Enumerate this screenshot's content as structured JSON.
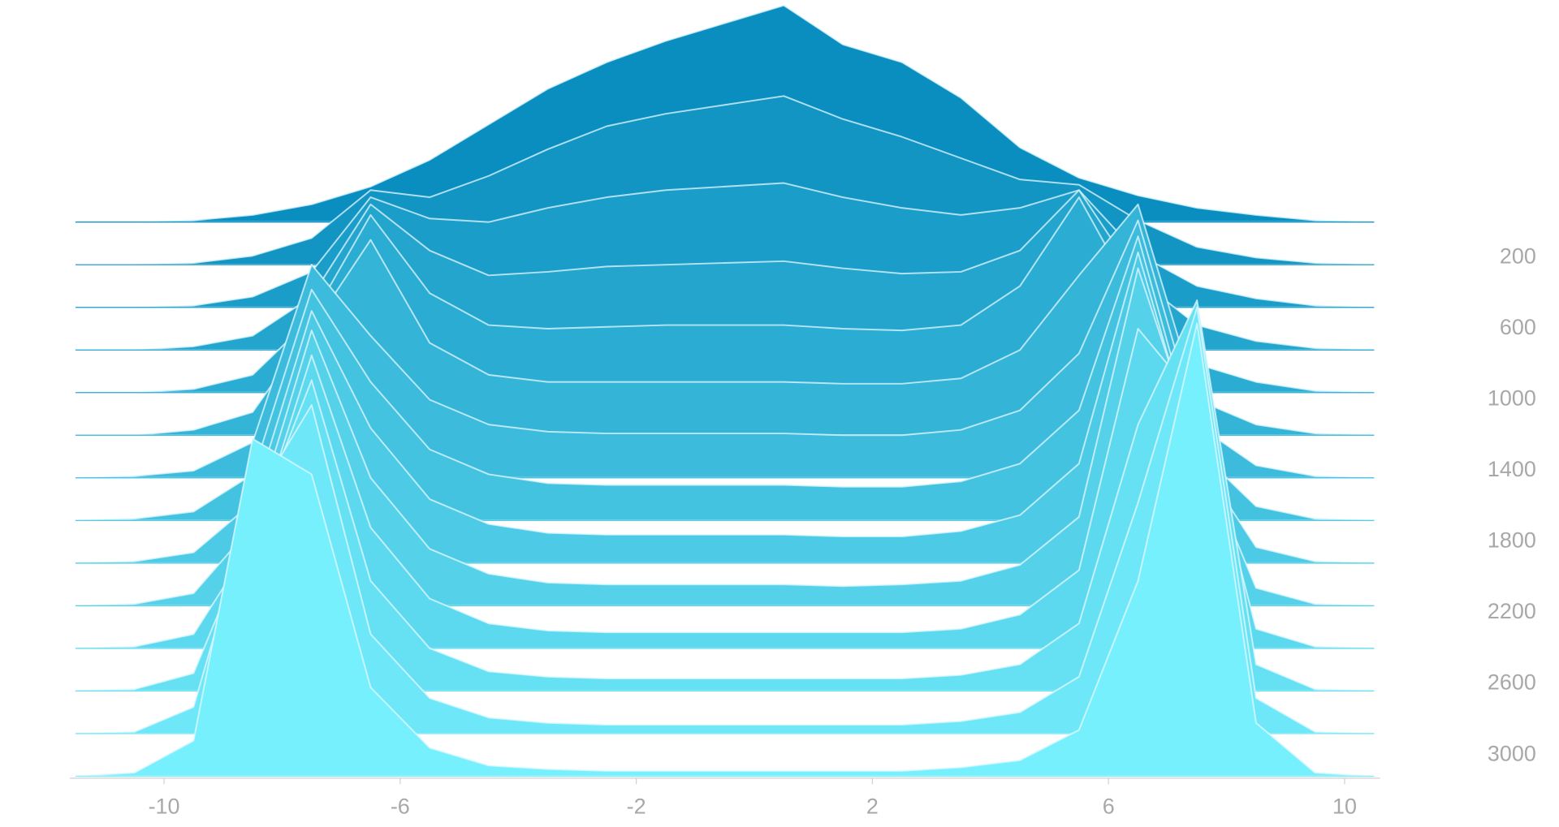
{
  "chart_data": {
    "type": "ridgeline",
    "x": [
      -11.5,
      -10.5,
      -9.5,
      -8.5,
      -7.5,
      -6.5,
      -5.5,
      -4.5,
      -3.5,
      -2.5,
      -1.5,
      -0.5,
      0.5,
      1.5,
      2.5,
      3.5,
      4.5,
      5.5,
      6.5,
      7.5,
      8.5,
      9.5,
      10.5
    ],
    "xlim": [
      -11.6,
      10.6
    ],
    "xticks": [
      -10,
      -6,
      -2,
      2,
      6,
      10
    ],
    "ylim": [
      3120,
      -1250
    ],
    "yticks": [
      200,
      600,
      1000,
      1400,
      1800,
      2200,
      2600,
      3000
    ],
    "line_color": "#e4f8ff",
    "axis_color": "#d0d0d0",
    "series": [
      {
        "row": 0,
        "color": "#0a8ebf",
        "values": [
          0,
          0,
          10,
          40,
          100,
          200,
          350,
          550,
          750,
          900,
          1020,
          1120,
          1220,
          1000,
          900,
          700,
          420,
          250,
          150,
          80,
          40,
          10,
          0
        ]
      },
      {
        "row": 240,
        "color": "#1295c3",
        "values": [
          0,
          0,
          10,
          50,
          150,
          420,
          380,
          500,
          650,
          780,
          850,
          900,
          950,
          820,
          720,
          600,
          480,
          450,
          250,
          100,
          40,
          10,
          0
        ]
      },
      {
        "row": 480,
        "color": "#1b9dc9",
        "values": [
          0,
          0,
          10,
          60,
          200,
          620,
          500,
          480,
          560,
          620,
          660,
          680,
          700,
          620,
          560,
          520,
          560,
          660,
          300,
          120,
          50,
          10,
          0
        ]
      },
      {
        "row": 720,
        "color": "#23a5cd",
        "values": [
          0,
          0,
          20,
          80,
          300,
          820,
          560,
          420,
          440,
          470,
          480,
          490,
          500,
          460,
          430,
          440,
          560,
          900,
          400,
          140,
          50,
          10,
          0
        ]
      },
      {
        "row": 960,
        "color": "#2bacd2",
        "values": [
          0,
          0,
          20,
          100,
          420,
          1000,
          560,
          380,
          360,
          370,
          380,
          380,
          380,
          360,
          350,
          380,
          600,
          1100,
          500,
          160,
          60,
          10,
          0
        ]
      },
      {
        "row": 1200,
        "color": "#34b4d7",
        "values": [
          0,
          0,
          30,
          130,
          600,
          1100,
          520,
          340,
          300,
          300,
          300,
          300,
          300,
          290,
          290,
          320,
          480,
          900,
          1300,
          200,
          60,
          10,
          0
        ]
      },
      {
        "row": 1440,
        "color": "#3cbbdc",
        "values": [
          0,
          10,
          40,
          200,
          1200,
          800,
          440,
          300,
          260,
          250,
          250,
          250,
          250,
          240,
          240,
          270,
          380,
          700,
          1450,
          300,
          70,
          10,
          0
        ]
      },
      {
        "row": 1680,
        "color": "#44c3e0",
        "values": [
          0,
          10,
          50,
          260,
          1300,
          780,
          400,
          260,
          210,
          200,
          200,
          200,
          200,
          190,
          190,
          220,
          320,
          620,
          1600,
          400,
          80,
          10,
          0
        ]
      },
      {
        "row": 1920,
        "color": "#4dcae5",
        "values": [
          0,
          10,
          60,
          340,
          1420,
          760,
          360,
          220,
          170,
          160,
          160,
          160,
          160,
          150,
          150,
          180,
          270,
          560,
          1750,
          600,
          90,
          10,
          0
        ]
      },
      {
        "row": 2160,
        "color": "#55d2ea",
        "values": [
          0,
          10,
          70,
          450,
          1550,
          720,
          320,
          180,
          130,
          120,
          120,
          120,
          120,
          110,
          120,
          140,
          230,
          500,
          1900,
          900,
          100,
          10,
          0
        ]
      },
      {
        "row": 2400,
        "color": "#5dd9ef",
        "values": [
          0,
          10,
          80,
          600,
          1650,
          680,
          280,
          140,
          100,
          90,
          90,
          90,
          90,
          90,
          90,
          110,
          190,
          440,
          1800,
          1400,
          110,
          10,
          0
        ]
      },
      {
        "row": 2640,
        "color": "#66e1f4",
        "values": [
          0,
          10,
          100,
          900,
          1750,
          620,
          240,
          110,
          80,
          70,
          70,
          70,
          70,
          70,
          70,
          90,
          150,
          380,
          1500,
          2200,
          150,
          10,
          0
        ]
      },
      {
        "row": 2880,
        "color": "#6ee8f8",
        "values": [
          0,
          10,
          150,
          1300,
          1850,
          560,
          200,
          90,
          60,
          50,
          50,
          50,
          50,
          50,
          50,
          70,
          120,
          320,
          1300,
          2400,
          200,
          10,
          0
        ]
      },
      {
        "row": 3120,
        "color": "#76f0fd",
        "values": [
          0,
          20,
          200,
          1900,
          1700,
          500,
          160,
          60,
          40,
          30,
          30,
          30,
          30,
          30,
          30,
          50,
          90,
          260,
          1100,
          2550,
          300,
          20,
          0
        ]
      }
    ]
  }
}
